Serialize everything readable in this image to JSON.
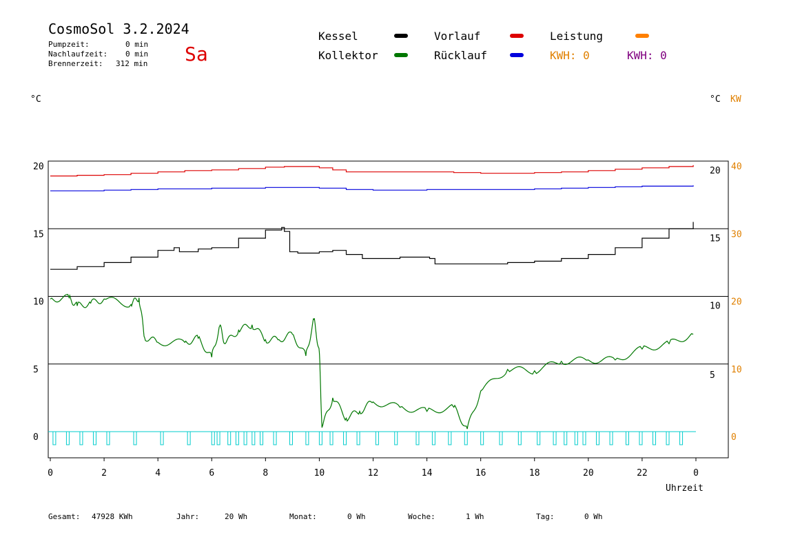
{
  "header": {
    "title": "CosmoSol 3.2.2024",
    "day": "Sa",
    "pump_label": "Pumpzeit:",
    "pump_value": "0 min",
    "run_label": "Nachlaufzeit:",
    "run_value": "0 min",
    "burner_label": "Brennerzeit:",
    "burner_value": "312 min"
  },
  "legend": {
    "kessel": "Kessel",
    "kollektor": "Kollektor",
    "vorlauf": "Vorlauf",
    "ruecklauf": "Rücklauf",
    "leistung": "Leistung",
    "kwh1": "KWH: 0",
    "kwh2": "KWH: 0"
  },
  "axes": {
    "left_unit": "°C",
    "right_unit": "°C",
    "kw_unit": "KW",
    "xlabel": "Uhrzeit"
  },
  "footer": {
    "gesamt_label": "Gesamt:",
    "gesamt_value": "47928 KWh",
    "jahr_label": "Jahr:",
    "jahr_value": "20 Wh",
    "monat_label": "Monat:",
    "monat_value": "0 Wh",
    "woche_label": "Woche:",
    "woche_value": "1 Wh",
    "tag_label": "Tag:",
    "tag_value": "0 Wh"
  },
  "colors": {
    "kessel": "#000000",
    "kollektor": "#007700",
    "vorlauf": "#dd0000",
    "ruecklauf": "#0000dd",
    "leistung": "#ff8000",
    "kwh2": "#800080",
    "pump": "#00cccc",
    "kw_axis": "#e08000"
  },
  "chart_data": {
    "type": "line",
    "xlabel": "Uhrzeit",
    "xlim": [
      0,
      24
    ],
    "x_ticks": [
      "0",
      "2",
      "4",
      "6",
      "8",
      "10",
      "12",
      "14",
      "16",
      "18",
      "20",
      "22",
      "0"
    ],
    "left_ticks": [
      "20",
      "15",
      "10",
      "5",
      "0"
    ],
    "right_ticks": [
      "20",
      "15",
      "10",
      "5"
    ],
    "kw_ticks": [
      "40",
      "30",
      "20",
      "10",
      "0"
    ],
    "series": [
      {
        "name": "Vorlauf",
        "color": "#dd0000",
        "x": [
          0,
          1,
          2,
          3,
          4,
          5,
          6,
          7,
          8,
          8.7,
          9.2,
          10,
          10.5,
          11,
          12,
          13,
          14,
          15,
          16,
          17,
          18,
          19,
          20,
          21,
          22,
          23,
          23.9
        ],
        "y": [
          18.9,
          18.95,
          19.0,
          19.1,
          19.2,
          19.3,
          19.35,
          19.45,
          19.55,
          19.6,
          19.6,
          19.5,
          19.35,
          19.2,
          19.2,
          19.2,
          19.2,
          19.15,
          19.1,
          19.1,
          19.15,
          19.2,
          19.3,
          19.4,
          19.5,
          19.6,
          19.7
        ]
      },
      {
        "name": "Rücklauf",
        "color": "#0000dd",
        "x": [
          0,
          1,
          2,
          3,
          4,
          5,
          6,
          7,
          8,
          9,
          10,
          11,
          12,
          13,
          14,
          15,
          16,
          17,
          18,
          19,
          20,
          21,
          22,
          23,
          23.9
        ],
        "y": [
          17.8,
          17.8,
          17.85,
          17.9,
          17.95,
          17.95,
          18.0,
          18.0,
          18.05,
          18.05,
          18.0,
          17.9,
          17.85,
          17.85,
          17.9,
          17.9,
          17.9,
          17.9,
          17.95,
          18.0,
          18.05,
          18.1,
          18.15,
          18.15,
          18.2
        ]
      },
      {
        "name": "Kessel",
        "color": "#000000",
        "x": [
          0,
          1,
          2,
          3,
          4,
          4.6,
          4.8,
          5.5,
          6,
          7,
          8,
          8.6,
          8.7,
          8.9,
          9.2,
          10,
          10.5,
          11,
          11.4,
          11.6,
          12,
          13,
          14,
          14.1,
          14.3,
          15,
          16,
          17,
          18,
          19,
          20,
          21,
          22,
          23,
          23.9
        ],
        "y": [
          12.0,
          12.2,
          12.5,
          12.9,
          13.4,
          13.6,
          13.3,
          13.5,
          13.6,
          14.3,
          14.9,
          15.1,
          14.8,
          13.3,
          13.2,
          13.3,
          13.4,
          13.1,
          13.1,
          12.8,
          12.8,
          12.9,
          12.9,
          12.8,
          12.4,
          12.4,
          12.4,
          12.5,
          12.6,
          12.8,
          13.1,
          13.6,
          14.3,
          15.0,
          15.5
        ]
      },
      {
        "name": "Kollektor",
        "color": "#007700",
        "x": [
          0,
          0.7,
          1,
          1.5,
          2,
          3,
          3.3,
          3.5,
          4,
          5,
          5.5,
          6,
          6.3,
          6.5,
          7,
          7.5,
          8,
          8.5,
          9,
          9.5,
          9.8,
          10,
          10.1,
          10.5,
          11,
          11.5,
          12,
          13,
          14,
          15,
          15.5,
          16,
          17,
          18,
          19,
          20,
          21,
          22,
          23,
          23.9
        ],
        "y": [
          9.8,
          9.9,
          9.3,
          9.5,
          9.8,
          9.4,
          9.9,
          7.0,
          6.6,
          6.6,
          6.9,
          5.5,
          7.8,
          6.5,
          7.5,
          7.9,
          6.8,
          6.8,
          7.2,
          5.6,
          8.3,
          5.9,
          0.3,
          2.5,
          1.0,
          1.5,
          2.2,
          1.8,
          1.5,
          1.8,
          0.2,
          3.0,
          4.6,
          4.5,
          5.2,
          5.3,
          5.3,
          6.1,
          6.5,
          7.2
        ]
      }
    ],
    "pump_pulses": [
      0.1,
      0.6,
      1.1,
      1.6,
      2.1,
      3.1,
      4.1,
      5.1,
      6.0,
      6.2,
      6.6,
      6.9,
      7.2,
      7.5,
      7.8,
      8.3,
      8.9,
      9.5,
      10.0,
      10.4,
      10.9,
      11.4,
      12.1,
      12.8,
      13.6,
      14.2,
      14.8,
      15.4,
      16.0,
      16.7,
      17.4,
      18.1,
      18.7,
      19.1,
      19.5,
      19.8,
      20.3,
      20.8,
      21.4,
      21.9,
      22.4,
      22.9,
      23.4
    ]
  }
}
